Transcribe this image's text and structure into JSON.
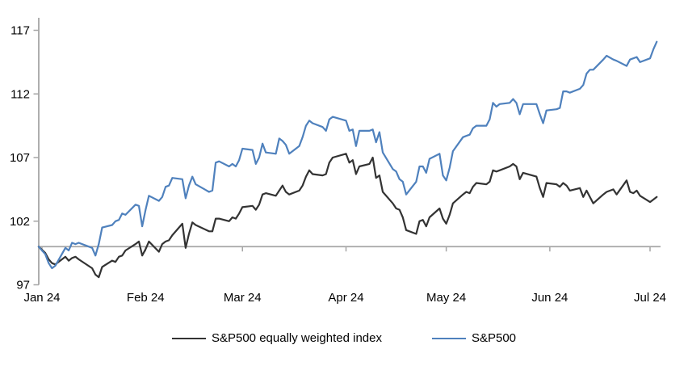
{
  "chart_data": {
    "type": "line",
    "title": "",
    "xlabel": "",
    "ylabel": "",
    "grid": "off",
    "legend_position": "bottom-center",
    "x_axis": {
      "tick_labels": [
        "Jan 24",
        "Feb 24",
        "Mar 24",
        "Apr 24",
        "May 24",
        "Jun 24",
        "Jul 24"
      ],
      "tick_day_offsets": [
        0,
        31,
        60,
        91,
        121,
        152,
        182
      ],
      "unit": "calendar days from 1 Jan 2024",
      "axis_crosses_at_value": 100
    },
    "y_axis": {
      "ticks": [
        97,
        102,
        107,
        112,
        117
      ],
      "range": [
        97,
        117
      ],
      "baseline_value": 100
    },
    "series": [
      {
        "name": "S&P500 equally weighted index",
        "color": "#333333",
        "points": [
          [
            -1,
            100
          ],
          [
            1,
            99.5
          ],
          [
            2,
            99.0
          ],
          [
            3,
            98.7
          ],
          [
            4,
            98.6
          ],
          [
            7,
            99.2
          ],
          [
            8,
            98.9
          ],
          [
            9,
            99.1
          ],
          [
            10,
            99.2
          ],
          [
            11,
            99.0
          ],
          [
            15,
            98.3
          ],
          [
            16,
            97.8
          ],
          [
            17,
            97.6
          ],
          [
            18,
            98.4
          ],
          [
            21,
            98.9
          ],
          [
            22,
            98.8
          ],
          [
            23,
            99.2
          ],
          [
            24,
            99.3
          ],
          [
            25,
            99.7
          ],
          [
            28,
            100.2
          ],
          [
            29,
            100.4
          ],
          [
            30,
            99.3
          ],
          [
            31,
            99.8
          ],
          [
            32,
            100.4
          ],
          [
            35,
            99.6
          ],
          [
            36,
            100.2
          ],
          [
            37,
            100.4
          ],
          [
            38,
            100.5
          ],
          [
            39,
            100.9
          ],
          [
            42,
            101.8
          ],
          [
            43,
            99.9
          ],
          [
            44,
            101.0
          ],
          [
            45,
            101.9
          ],
          [
            46,
            101.7
          ],
          [
            50,
            101.2
          ],
          [
            51,
            101.2
          ],
          [
            52,
            102.2
          ],
          [
            53,
            102.2
          ],
          [
            56,
            102.0
          ],
          [
            57,
            102.3
          ],
          [
            58,
            102.2
          ],
          [
            59,
            102.6
          ],
          [
            60,
            103.1
          ],
          [
            63,
            103.2
          ],
          [
            64,
            102.9
          ],
          [
            65,
            103.3
          ],
          [
            66,
            104.1
          ],
          [
            67,
            104.2
          ],
          [
            70,
            104.0
          ],
          [
            71,
            104.4
          ],
          [
            72,
            104.8
          ],
          [
            73,
            104.3
          ],
          [
            74,
            104.1
          ],
          [
            77,
            104.4
          ],
          [
            78,
            104.8
          ],
          [
            79,
            105.5
          ],
          [
            80,
            106.0
          ],
          [
            81,
            105.7
          ],
          [
            84,
            105.6
          ],
          [
            85,
            105.7
          ],
          [
            86,
            106.6
          ],
          [
            87,
            107.0
          ],
          [
            91,
            107.3
          ],
          [
            92,
            106.6
          ],
          [
            93,
            106.8
          ],
          [
            94,
            105.7
          ],
          [
            95,
            106.3
          ],
          [
            98,
            106.5
          ],
          [
            99,
            107.0
          ],
          [
            100,
            105.4
          ],
          [
            101,
            105.6
          ],
          [
            102,
            104.3
          ],
          [
            105,
            103.4
          ],
          [
            106,
            103.0
          ],
          [
            107,
            102.9
          ],
          [
            108,
            102.3
          ],
          [
            109,
            101.3
          ],
          [
            112,
            101.0
          ],
          [
            113,
            102.0
          ],
          [
            114,
            102.1
          ],
          [
            115,
            101.6
          ],
          [
            116,
            102.3
          ],
          [
            119,
            103.0
          ],
          [
            120,
            102.2
          ],
          [
            121,
            101.8
          ],
          [
            122,
            102.5
          ],
          [
            123,
            103.4
          ],
          [
            126,
            104.1
          ],
          [
            127,
            104.3
          ],
          [
            128,
            104.2
          ],
          [
            129,
            104.7
          ],
          [
            130,
            105.0
          ],
          [
            133,
            104.9
          ],
          [
            134,
            105.1
          ],
          [
            135,
            106.0
          ],
          [
            136,
            105.9
          ],
          [
            137,
            106.0
          ],
          [
            140,
            106.3
          ],
          [
            141,
            106.5
          ],
          [
            142,
            106.3
          ],
          [
            143,
            105.3
          ],
          [
            144,
            105.8
          ],
          [
            148,
            105.5
          ],
          [
            149,
            104.6
          ],
          [
            150,
            103.9
          ],
          [
            151,
            105.0
          ],
          [
            154,
            104.9
          ],
          [
            155,
            104.7
          ],
          [
            156,
            105.0
          ],
          [
            157,
            104.8
          ],
          [
            158,
            104.4
          ],
          [
            161,
            104.6
          ],
          [
            162,
            103.9
          ],
          [
            163,
            104.4
          ],
          [
            164,
            103.9
          ],
          [
            165,
            103.4
          ],
          [
            168,
            104.1
          ],
          [
            169,
            104.3
          ],
          [
            171,
            104.5
          ],
          [
            172,
            104.1
          ],
          [
            175,
            105.2
          ],
          [
            176,
            104.3
          ],
          [
            177,
            104.2
          ],
          [
            178,
            104.4
          ],
          [
            179,
            104.0
          ],
          [
            182,
            103.5
          ],
          [
            183,
            103.7
          ],
          [
            184,
            103.9
          ]
        ]
      },
      {
        "name": "S&P500",
        "color": "#4f81bd",
        "points": [
          [
            -1,
            100
          ],
          [
            1,
            99.4
          ],
          [
            2,
            98.7
          ],
          [
            3,
            98.3
          ],
          [
            4,
            98.5
          ],
          [
            7,
            99.9
          ],
          [
            8,
            99.7
          ],
          [
            9,
            100.3
          ],
          [
            10,
            100.2
          ],
          [
            11,
            100.3
          ],
          [
            15,
            99.9
          ],
          [
            16,
            99.3
          ],
          [
            17,
            100.2
          ],
          [
            18,
            101.5
          ],
          [
            21,
            101.7
          ],
          [
            22,
            102.0
          ],
          [
            23,
            102.1
          ],
          [
            24,
            102.6
          ],
          [
            25,
            102.5
          ],
          [
            28,
            103.3
          ],
          [
            29,
            103.2
          ],
          [
            30,
            101.6
          ],
          [
            31,
            102.9
          ],
          [
            32,
            104.0
          ],
          [
            35,
            103.6
          ],
          [
            36,
            103.9
          ],
          [
            37,
            104.7
          ],
          [
            38,
            104.8
          ],
          [
            39,
            105.4
          ],
          [
            42,
            105.3
          ],
          [
            43,
            103.8
          ],
          [
            44,
            104.8
          ],
          [
            45,
            105.5
          ],
          [
            46,
            104.9
          ],
          [
            50,
            104.3
          ],
          [
            51,
            104.4
          ],
          [
            52,
            106.6
          ],
          [
            53,
            106.7
          ],
          [
            56,
            106.3
          ],
          [
            57,
            106.5
          ],
          [
            58,
            106.3
          ],
          [
            59,
            106.8
          ],
          [
            60,
            107.7
          ],
          [
            63,
            107.6
          ],
          [
            64,
            106.5
          ],
          [
            65,
            107.0
          ],
          [
            66,
            108.1
          ],
          [
            67,
            107.4
          ],
          [
            70,
            107.3
          ],
          [
            71,
            108.5
          ],
          [
            72,
            108.3
          ],
          [
            73,
            108.0
          ],
          [
            74,
            107.3
          ],
          [
            77,
            107.9
          ],
          [
            78,
            108.6
          ],
          [
            79,
            109.5
          ],
          [
            80,
            109.9
          ],
          [
            81,
            109.7
          ],
          [
            84,
            109.4
          ],
          [
            85,
            109.1
          ],
          [
            86,
            110.0
          ],
          [
            87,
            110.2
          ],
          [
            91,
            109.9
          ],
          [
            92,
            109.1
          ],
          [
            93,
            109.2
          ],
          [
            94,
            107.9
          ],
          [
            95,
            109.1
          ],
          [
            98,
            109.1
          ],
          [
            99,
            109.2
          ],
          [
            100,
            108.2
          ],
          [
            101,
            109.0
          ],
          [
            102,
            107.4
          ],
          [
            105,
            106.1
          ],
          [
            106,
            105.9
          ],
          [
            107,
            105.3
          ],
          [
            108,
            105.1
          ],
          [
            109,
            104.1
          ],
          [
            112,
            105.1
          ],
          [
            113,
            106.3
          ],
          [
            114,
            106.3
          ],
          [
            115,
            105.8
          ],
          [
            116,
            106.9
          ],
          [
            119,
            107.3
          ],
          [
            120,
            105.6
          ],
          [
            121,
            105.2
          ],
          [
            122,
            106.2
          ],
          [
            123,
            107.5
          ],
          [
            126,
            108.6
          ],
          [
            127,
            108.7
          ],
          [
            128,
            108.8
          ],
          [
            129,
            109.3
          ],
          [
            130,
            109.5
          ],
          [
            133,
            109.5
          ],
          [
            134,
            110.0
          ],
          [
            135,
            111.3
          ],
          [
            136,
            111.0
          ],
          [
            137,
            111.2
          ],
          [
            140,
            111.3
          ],
          [
            141,
            111.6
          ],
          [
            142,
            111.3
          ],
          [
            143,
            110.4
          ],
          [
            144,
            111.2
          ],
          [
            148,
            111.2
          ],
          [
            149,
            110.4
          ],
          [
            150,
            109.7
          ],
          [
            151,
            110.7
          ],
          [
            154,
            110.8
          ],
          [
            155,
            110.9
          ],
          [
            156,
            112.2
          ],
          [
            157,
            112.2
          ],
          [
            158,
            112.1
          ],
          [
            161,
            112.4
          ],
          [
            162,
            112.7
          ],
          [
            163,
            113.6
          ],
          [
            164,
            113.9
          ],
          [
            165,
            113.9
          ],
          [
            168,
            114.7
          ],
          [
            169,
            115.0
          ],
          [
            171,
            114.7
          ],
          [
            172,
            114.6
          ],
          [
            175,
            114.2
          ],
          [
            176,
            114.7
          ],
          [
            177,
            114.8
          ],
          [
            178,
            114.9
          ],
          [
            179,
            114.5
          ],
          [
            182,
            114.8
          ],
          [
            183,
            115.5
          ],
          [
            184,
            116.1
          ]
        ]
      }
    ]
  },
  "legend": {
    "items": [
      {
        "label": "S&P500 equally weighted index",
        "color": "#333333"
      },
      {
        "label": "S&P500",
        "color": "#4f81bd"
      }
    ]
  },
  "colors": {
    "axis": "#a6a6a6",
    "tick_text": "#000000",
    "background": "#ffffff"
  }
}
